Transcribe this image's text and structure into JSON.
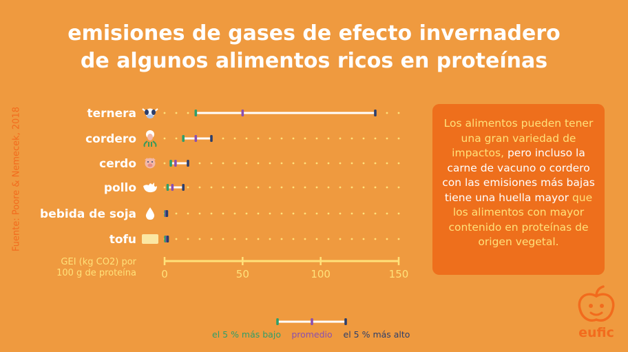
{
  "title": {
    "line1": "emisiones de gases de efecto invernadero",
    "line2": "de algunos alimentos ricos en proteínas"
  },
  "source": "Fuente: Poore & Nemecek, 2018",
  "note": {
    "part1": "Los alimentos pueden tener una gran variedad de impactos,",
    "part2": "pero incluso la carne de vacuno o cordero con las emisiones más bajas tiene una huella mayor",
    "part3": "que los alimentos con mayor contenido en proteínas de origen vegetal."
  },
  "logo": {
    "text": "eufic",
    "icon": "apple-face-icon"
  },
  "colors": {
    "background": "#ef9a3f",
    "low": "#2f9e6a",
    "mean": "#8a4fb0",
    "high": "#2c3e6b",
    "axis": "#ffe17a",
    "dots": "#ffe17a",
    "range": "#ffffff"
  },
  "chart_data": {
    "type": "range",
    "xlabel": "GEI (kg CO2) por 100 g de proteína",
    "xlim": [
      0,
      150
    ],
    "ticks": [
      0,
      50,
      100,
      150
    ],
    "categories": [
      "ternera",
      "cordero",
      "cerdo",
      "pollo",
      "bebida de soja",
      "tofu"
    ],
    "icons": [
      "cow-icon",
      "sheep-icon",
      "pig-icon",
      "chicken-icon",
      "drop-icon",
      "tofu-icon"
    ],
    "series": [
      {
        "name": "el 5 % más bajo",
        "values": [
          20,
          12,
          4,
          2,
          0.5,
          0.5
        ]
      },
      {
        "name": "promedio",
        "values": [
          50,
          20,
          7,
          5,
          1,
          1.5
        ]
      },
      {
        "name": "el 5 % más alto",
        "values": [
          135,
          30,
          15,
          12,
          1.5,
          2
        ]
      }
    ],
    "legend_position": "bottom"
  }
}
